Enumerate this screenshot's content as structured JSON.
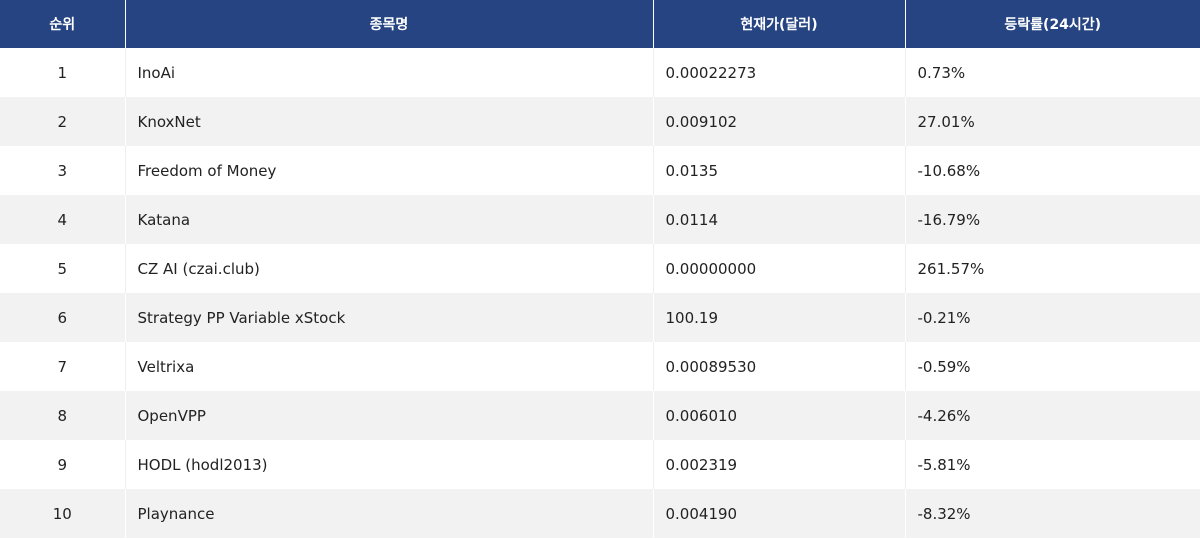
{
  "colors": {
    "header_bg": "#264382",
    "alt_row": "#f2f2f2"
  },
  "table": {
    "headers": [
      "순위",
      "종목명",
      "현재가(달러)",
      "등락률(24시간)"
    ],
    "rows": [
      [
        "1",
        "InoAi",
        "0.00022273",
        "0.73%"
      ],
      [
        "2",
        "KnoxNet",
        "0.009102",
        "27.01%"
      ],
      [
        "3",
        "Freedom of Money",
        "0.0135",
        "-10.68%"
      ],
      [
        "4",
        "Katana",
        "0.0114",
        "-16.79%"
      ],
      [
        "5",
        "CZ AI (czai.club)",
        "0.00000000",
        "261.57%"
      ],
      [
        "6",
        "Strategy PP Variable xStock",
        "100.19",
        "-0.21%"
      ],
      [
        "7",
        "Veltrixa",
        "0.00089530",
        "-0.59%"
      ],
      [
        "8",
        "OpenVPP",
        "0.006010",
        "-4.26%"
      ],
      [
        "9",
        "HODL (hodl2013)",
        "0.002319",
        "-5.81%"
      ],
      [
        "10",
        "Playnance",
        "0.004190",
        "-8.32%"
      ]
    ]
  }
}
